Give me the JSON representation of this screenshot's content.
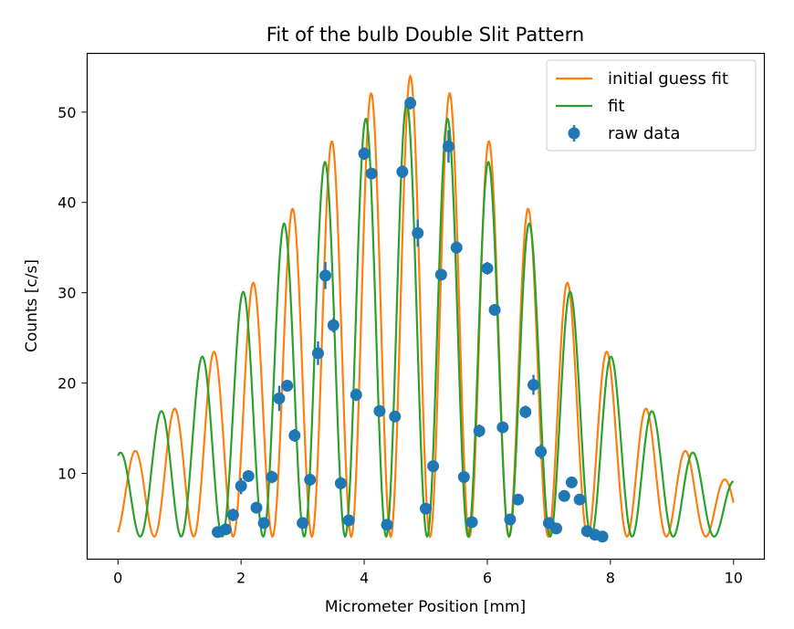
{
  "chart_data": {
    "type": "line",
    "title": "Fit of the bulb Double Slit Pattern",
    "xlabel": "Micrometer Position [mm]",
    "ylabel": "Counts [c/s]",
    "xlim": [
      -0.5,
      10.5
    ],
    "ylim": [
      0.5,
      56.5
    ],
    "xticks": [
      0,
      2,
      4,
      6,
      8,
      10
    ],
    "yticks": [
      10,
      20,
      30,
      40,
      50
    ],
    "grid": false,
    "legend_position": "top-right",
    "series": [
      {
        "name": "initial guess fit",
        "kind": "line",
        "color": "#ff7f0e",
        "model": {
          "baseline": 3.0,
          "amplitude": 51.0,
          "center": 4.75,
          "period": 0.64,
          "envelope_width": 2.3,
          "sidelobe_amplitude": 2.3,
          "sidelobe_period": 0.64
        }
      },
      {
        "name": "fit",
        "kind": "line",
        "color": "#2ca02c",
        "model": {
          "baseline": 3.0,
          "amplitude": 48.0,
          "center": 4.69,
          "period": 0.666,
          "envelope_width": 2.45,
          "sidelobe_amplitude": 1.8,
          "sidelobe_period": 0.666
        }
      },
      {
        "name": "raw data",
        "kind": "errorbar",
        "color": "#1f77b4",
        "x": [
          1.62,
          1.75,
          1.87,
          2.0,
          2.12,
          2.25,
          2.37,
          2.5,
          2.62,
          2.75,
          2.87,
          3.12,
          3.25,
          3.37,
          3.5,
          3.62,
          3.75,
          3.87,
          4.0,
          4.12,
          4.25,
          4.37,
          4.5,
          4.62,
          4.75,
          4.87,
          5.0,
          5.12,
          5.25,
          5.37,
          5.5,
          5.62,
          5.75,
          5.87,
          6.0,
          6.12,
          6.25,
          6.37,
          6.5,
          6.62,
          6.75,
          6.87,
          7.0,
          7.12,
          7.25,
          7.37,
          7.5,
          7.62,
          7.75,
          7.87,
          3.0
        ],
        "y": [
          3.5,
          3.8,
          5.4,
          8.6,
          9.7,
          6.2,
          4.5,
          9.6,
          18.3,
          19.7,
          14.2,
          9.3,
          23.3,
          31.9,
          26.4,
          8.9,
          4.8,
          18.7,
          45.4,
          43.2,
          16.9,
          4.3,
          16.3,
          43.4,
          51.0,
          36.6,
          6.1,
          10.8,
          32.0,
          46.2,
          35.0,
          9.6,
          4.6,
          14.7,
          32.7,
          28.1,
          15.1,
          4.9,
          7.1,
          16.8,
          19.8,
          12.4,
          4.5,
          3.9,
          7.5,
          9.0,
          7.1,
          3.6,
          3.2,
          3.0,
          4.5
        ],
        "yerr": [
          0.5,
          0.6,
          0.7,
          0.9,
          0.6,
          0.6,
          0.6,
          0.7,
          1.4,
          0.6,
          0.7,
          0.7,
          1.3,
          1.5,
          0.8,
          0.7,
          0.6,
          0.7,
          0.7,
          0.6,
          0.6,
          0.6,
          0.6,
          0.7,
          0.7,
          1.5,
          0.6,
          0.6,
          0.6,
          1.8,
          0.7,
          0.6,
          0.6,
          0.7,
          0.7,
          0.6,
          0.6,
          0.6,
          0.6,
          0.7,
          1.1,
          0.8,
          0.6,
          0.6,
          0.6,
          0.6,
          0.6,
          0.6,
          0.6,
          0.6,
          0.6
        ]
      }
    ]
  }
}
